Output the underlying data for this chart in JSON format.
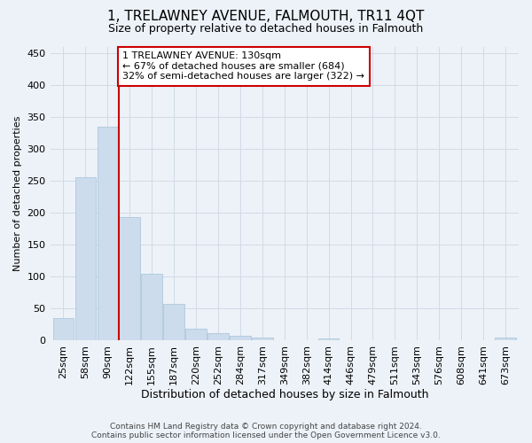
{
  "title": "1, TRELAWNEY AVENUE, FALMOUTH, TR11 4QT",
  "subtitle": "Size of property relative to detached houses in Falmouth",
  "xlabel": "Distribution of detached houses by size in Falmouth",
  "ylabel": "Number of detached properties",
  "footer_line1": "Contains HM Land Registry data © Crown copyright and database right 2024.",
  "footer_line2": "Contains public sector information licensed under the Open Government Licence v3.0.",
  "bar_labels": [
    "25sqm",
    "58sqm",
    "90sqm",
    "122sqm",
    "155sqm",
    "187sqm",
    "220sqm",
    "252sqm",
    "284sqm",
    "317sqm",
    "349sqm",
    "382sqm",
    "414sqm",
    "446sqm",
    "479sqm",
    "511sqm",
    "543sqm",
    "576sqm",
    "608sqm",
    "641sqm",
    "673sqm"
  ],
  "bar_values": [
    35,
    255,
    335,
    193,
    104,
    57,
    18,
    11,
    7,
    4,
    0,
    0,
    3,
    0,
    0,
    0,
    0,
    0,
    0,
    0,
    4
  ],
  "bar_color": "#ccdcec",
  "bar_edge_color": "#aec8dc",
  "grid_color": "#d0dbe8",
  "background_color": "#edf2f8",
  "vline_color": "#cc0000",
  "vline_index": 3,
  "annotation_line1": "1 TRELAWNEY AVENUE: 130sqm",
  "annotation_line2": "← 67% of detached houses are smaller (684)",
  "annotation_line3": "32% of semi-detached houses are larger (322) →",
  "annotation_box_facecolor": "#ffffff",
  "annotation_box_edgecolor": "#cc0000",
  "ylim": [
    0,
    460
  ],
  "yticks": [
    0,
    50,
    100,
    150,
    200,
    250,
    300,
    350,
    400,
    450
  ],
  "title_fontsize": 11,
  "subtitle_fontsize": 9,
  "xlabel_fontsize": 9,
  "ylabel_fontsize": 8,
  "tick_fontsize": 8,
  "footer_fontsize": 6.5
}
